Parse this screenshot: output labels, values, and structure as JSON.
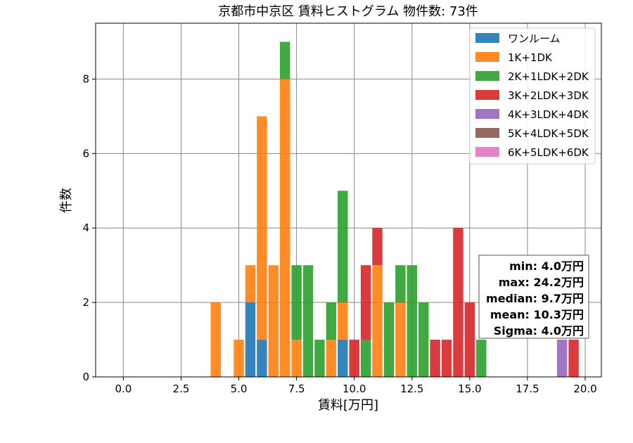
{
  "chart_data": {
    "type": "bar",
    "stacked": true,
    "title": "京都市中京区 賃料ヒストグラム  物件数: 73件",
    "xlabel": "賃料[万円]",
    "ylabel": "件数",
    "xlim": [
      -1.2,
      20.7
    ],
    "ylim": [
      0,
      9.5
    ],
    "xticks": [
      "0.0",
      "2.5",
      "5.0",
      "7.5",
      "10.0",
      "12.5",
      "15.0",
      "17.5",
      "20.0"
    ],
    "yticks": [
      "0",
      "2",
      "4",
      "6",
      "8"
    ],
    "grid": true,
    "legend_position": "top-right",
    "bin_width": 0.5,
    "series": [
      {
        "name": "ワンルーム",
        "color": "#1f77b4",
        "bins": [
          {
            "x": 5.5,
            "y": 2
          },
          {
            "x": 6.0,
            "y": 1
          },
          {
            "x": 9.5,
            "y": 1
          }
        ]
      },
      {
        "name": "1K+1DK",
        "color": "#ff7f0e",
        "bins": [
          {
            "x": 4.0,
            "y": 2
          },
          {
            "x": 5.0,
            "y": 1
          },
          {
            "x": 5.5,
            "y": 1
          },
          {
            "x": 6.0,
            "y": 6
          },
          {
            "x": 6.5,
            "y": 3
          },
          {
            "x": 7.0,
            "y": 8
          },
          {
            "x": 7.5,
            "y": 1
          },
          {
            "x": 9.0,
            "y": 1
          },
          {
            "x": 9.5,
            "y": 1
          },
          {
            "x": 11.0,
            "y": 3
          },
          {
            "x": 12.0,
            "y": 2
          }
        ]
      },
      {
        "name": "2K+1LDK+2DK",
        "color": "#2ca02c",
        "bins": [
          {
            "x": 7.0,
            "y": 1
          },
          {
            "x": 7.5,
            "y": 2
          },
          {
            "x": 8.0,
            "y": 3
          },
          {
            "x": 8.5,
            "y": 1
          },
          {
            "x": 9.0,
            "y": 1
          },
          {
            "x": 9.5,
            "y": 3
          },
          {
            "x": 10.5,
            "y": 1
          },
          {
            "x": 11.5,
            "y": 2
          },
          {
            "x": 12.0,
            "y": 1
          },
          {
            "x": 12.5,
            "y": 3
          },
          {
            "x": 13.0,
            "y": 2
          },
          {
            "x": 15.5,
            "y": 1
          }
        ]
      },
      {
        "name": "3K+2LDK+3DK",
        "color": "#d62728",
        "bins": [
          {
            "x": 10.0,
            "y": 1
          },
          {
            "x": 10.5,
            "y": 2
          },
          {
            "x": 11.0,
            "y": 1
          },
          {
            "x": 13.5,
            "y": 1
          },
          {
            "x": 14.0,
            "y": 1
          },
          {
            "x": 14.5,
            "y": 4
          },
          {
            "x": 15.0,
            "y": 2
          },
          {
            "x": 19.5,
            "y": 1
          }
        ]
      },
      {
        "name": "4K+3LDK+4DK",
        "color": "#9467bd",
        "bins": [
          {
            "x": 19.0,
            "y": 1
          }
        ]
      },
      {
        "name": "5K+4LDK+5DK",
        "color": "#8c564b",
        "bins": []
      },
      {
        "name": "6K+5LDK+6DK",
        "color": "#e377c2",
        "bins": []
      }
    ],
    "stats": [
      "min: 4.0万円",
      "max: 24.2万円",
      "median: 9.7万円",
      "mean: 10.3万円",
      "Sigma: 4.0万円"
    ]
  }
}
